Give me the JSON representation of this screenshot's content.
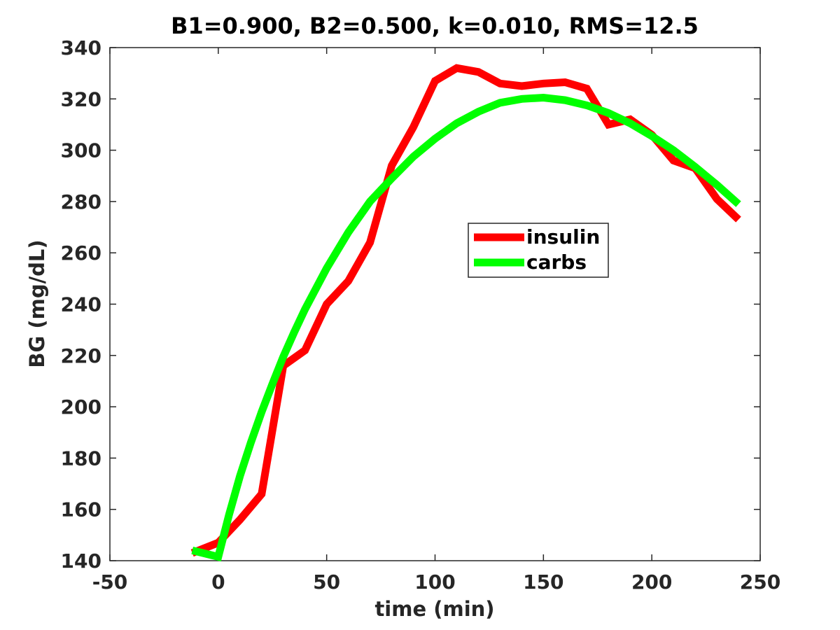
{
  "chart_data": {
    "type": "line",
    "title": "B1=0.900, B2=0.500, k=0.010, RMS=12.5",
    "xlabel": "time (min)",
    "ylabel": "BG (mg/dL)",
    "xlim": [
      -50,
      250
    ],
    "ylim": [
      140,
      340
    ],
    "xticks": [
      -50,
      0,
      50,
      100,
      150,
      200,
      250
    ],
    "yticks": [
      140,
      160,
      180,
      200,
      220,
      240,
      260,
      280,
      300,
      320,
      340
    ],
    "grid": false,
    "legend_position": "center-right",
    "series": [
      {
        "name": "insulin",
        "color": "#ff0000",
        "x": [
          -12,
          0,
          10,
          20,
          30,
          40,
          50,
          60,
          70,
          80,
          90,
          100,
          110,
          120,
          130,
          140,
          150,
          160,
          170,
          180,
          190,
          200,
          210,
          220,
          230,
          240
        ],
        "y": [
          143,
          147,
          156,
          166,
          216,
          222,
          240,
          249,
          264,
          294,
          309,
          327,
          332,
          330.5,
          326,
          325,
          326,
          326.5,
          324,
          310,
          312,
          306,
          296,
          293,
          281,
          273
        ]
      },
      {
        "name": "carbs",
        "color": "#00ff00",
        "x": [
          -12,
          0,
          5,
          10,
          15,
          20,
          25,
          30,
          35,
          40,
          50,
          60,
          70,
          80,
          90,
          100,
          110,
          120,
          130,
          140,
          150,
          160,
          170,
          180,
          190,
          200,
          210,
          220,
          230,
          240
        ],
        "y": [
          144,
          141.5,
          158,
          173,
          186,
          198,
          209,
          219.5,
          229,
          238,
          254,
          268,
          280,
          289,
          297.5,
          304.5,
          310.5,
          315,
          318.5,
          320,
          320.5,
          319.5,
          317.5,
          314.5,
          310.5,
          305.5,
          300,
          293.5,
          286.5,
          279
        ]
      }
    ]
  }
}
